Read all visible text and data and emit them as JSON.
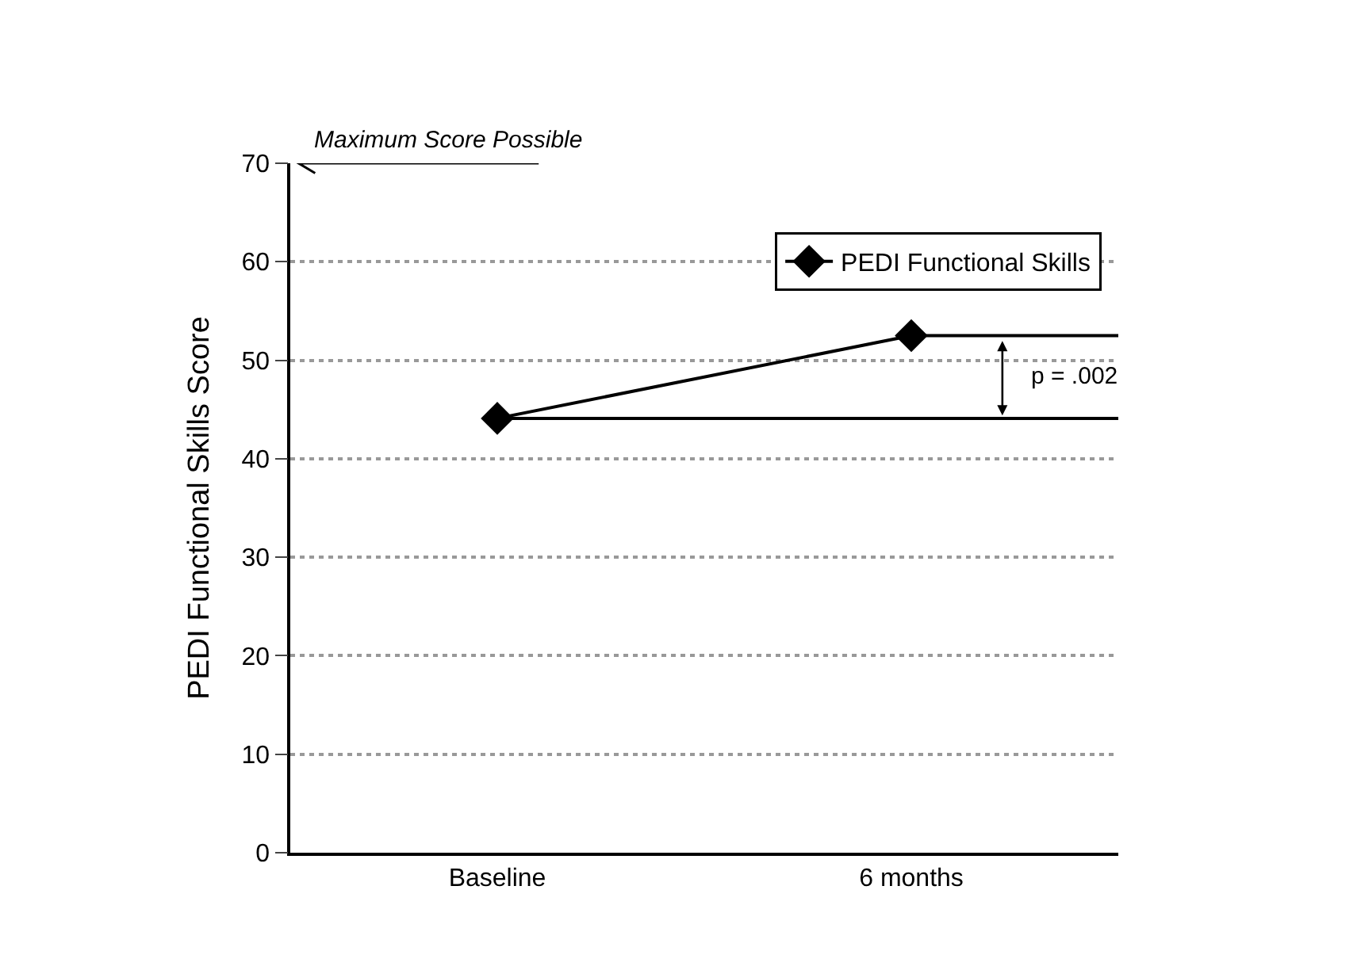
{
  "chart_data": {
    "type": "line",
    "ylabel": "PEDI Functional Skills Score",
    "categories": [
      "Baseline",
      "6 months"
    ],
    "series": [
      {
        "name": "PEDI Functional Skills",
        "color": "#000000",
        "values": [
          44.1,
          52.5
        ]
      }
    ],
    "ylim": [
      0,
      70
    ],
    "yticks": [
      0,
      10,
      20,
      30,
      40,
      50,
      60,
      70
    ],
    "grid": "y",
    "legend": "top right",
    "marker": "diamond",
    "line_style": "solid",
    "ref_lines": [
      {
        "axis": "y",
        "value": 70,
        "label": "Maximum Score Possible",
        "color": "#000000"
      },
      {
        "axis": "y",
        "value": 44.1,
        "color": "#000000"
      },
      {
        "axis": "y",
        "value": 52.5,
        "color": "#000000"
      }
    ],
    "annotations": [
      "p = .002"
    ]
  }
}
